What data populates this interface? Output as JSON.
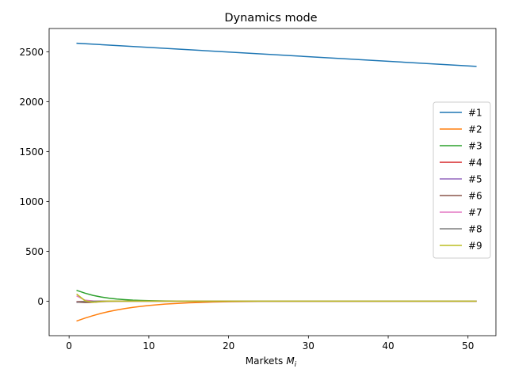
{
  "chart_data": {
    "type": "line",
    "title": "Dynamics mode",
    "xlabel": "Markets",
    "xlabel_math": "M",
    "xlabel_sub": "i",
    "ylabel": "",
    "xlim": [
      -2.5,
      53.5
    ],
    "ylim": [
      -346,
      2733
    ],
    "xticks": [
      0,
      10,
      20,
      30,
      40,
      50
    ],
    "yticks": [
      0,
      500,
      1000,
      1500,
      2000,
      2500
    ],
    "grid": false,
    "legend_position": "center-right",
    "series": [
      {
        "name": "#1",
        "color": "#1f77b4",
        "points": [
          [
            1,
            2585
          ],
          [
            51,
            2353
          ]
        ]
      },
      {
        "name": "#2",
        "color": "#ff7f0e",
        "points": [
          [
            1,
            -198
          ],
          [
            2,
            -170
          ],
          [
            3,
            -145
          ],
          [
            4,
            -123
          ],
          [
            5,
            -104
          ],
          [
            6,
            -88
          ],
          [
            7,
            -74
          ],
          [
            8,
            -62
          ],
          [
            9,
            -52
          ],
          [
            10,
            -43
          ],
          [
            12,
            -30
          ],
          [
            15,
            -17
          ],
          [
            18,
            -9
          ],
          [
            20,
            -6
          ],
          [
            25,
            -2
          ],
          [
            30,
            -0.5
          ],
          [
            51,
            0
          ]
        ]
      },
      {
        "name": "#3",
        "color": "#2ca02c",
        "points": [
          [
            1,
            107
          ],
          [
            2,
            80
          ],
          [
            3,
            58
          ],
          [
            4,
            42
          ],
          [
            5,
            30
          ],
          [
            6,
            21
          ],
          [
            7,
            15
          ],
          [
            8,
            10
          ],
          [
            9,
            7
          ],
          [
            10,
            5
          ],
          [
            12,
            2
          ],
          [
            15,
            0.5
          ],
          [
            20,
            0
          ],
          [
            51,
            0
          ]
        ]
      },
      {
        "name": "#4",
        "color": "#d62728",
        "points": [
          [
            1,
            -5
          ],
          [
            2,
            -2
          ],
          [
            3,
            -1
          ],
          [
            4,
            0
          ],
          [
            51,
            0
          ]
        ]
      },
      {
        "name": "#5",
        "color": "#9467bd",
        "points": [
          [
            1,
            -12
          ],
          [
            2,
            -5
          ],
          [
            3,
            -2
          ],
          [
            4,
            0
          ],
          [
            51,
            0
          ]
        ]
      },
      {
        "name": "#6",
        "color": "#8c564b",
        "points": [
          [
            1,
            -10
          ],
          [
            2,
            -14
          ],
          [
            3,
            -12
          ],
          [
            4,
            -6
          ],
          [
            5,
            -2
          ],
          [
            6,
            0
          ],
          [
            51,
            0
          ]
        ]
      },
      {
        "name": "#7",
        "color": "#e377c2",
        "points": [
          [
            1,
            50
          ],
          [
            2,
            10
          ],
          [
            3,
            2
          ],
          [
            4,
            0
          ],
          [
            51,
            0
          ]
        ]
      },
      {
        "name": "#8",
        "color": "#7f7f7f",
        "points": [
          [
            1,
            -8
          ],
          [
            2,
            -3
          ],
          [
            3,
            -1
          ],
          [
            4,
            0
          ],
          [
            51,
            0
          ]
        ]
      },
      {
        "name": "#9",
        "color": "#bcbd22",
        "points": [
          [
            1,
            68
          ],
          [
            2,
            4
          ],
          [
            3,
            -12
          ],
          [
            4,
            -3
          ],
          [
            5,
            1
          ],
          [
            6,
            0
          ],
          [
            51,
            0
          ]
        ]
      }
    ]
  }
}
